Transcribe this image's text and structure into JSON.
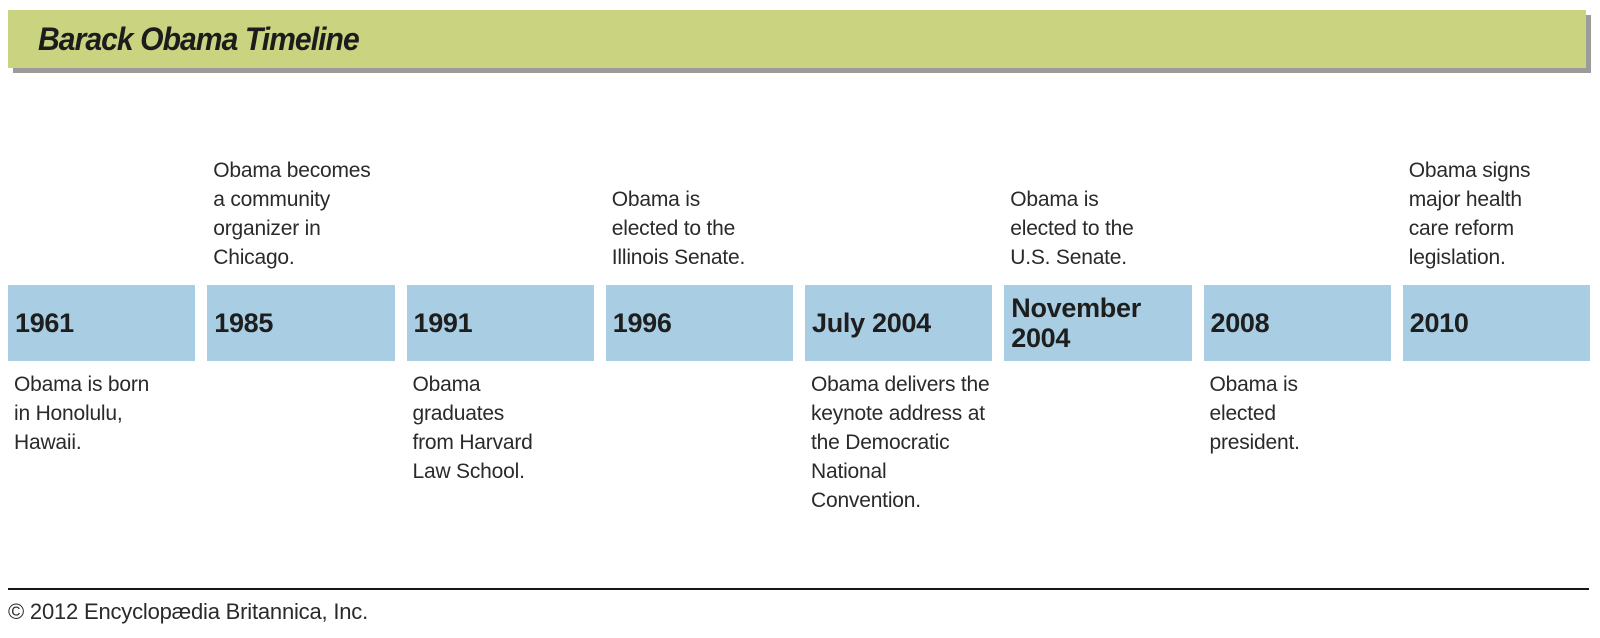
{
  "header": {
    "title": "Barack Obama Timeline"
  },
  "timeline": {
    "events": [
      {
        "date": "1961",
        "caption_below": "Obama is born\nin Honolulu,\nHawaii."
      },
      {
        "date": "1985",
        "caption_above": "Obama becomes\na community\norganizer in\nChicago."
      },
      {
        "date": "1991",
        "caption_below": "Obama\ngraduates\nfrom Harvard\nLaw School."
      },
      {
        "date": "1996",
        "caption_above": "Obama is\nelected to the\nIllinois Senate."
      },
      {
        "date": "July 2004",
        "caption_below": "Obama delivers the\nkeynote address at\nthe Democratic\nNational\nConvention."
      },
      {
        "date": "November\n2004",
        "caption_above": "Obama is\nelected to the\nU.S. Senate."
      },
      {
        "date": "2008",
        "caption_below": "Obama is\nelected\npresident."
      },
      {
        "date": "2010",
        "caption_above": "Obama signs\nmajor health\ncare reform\nlegislation."
      }
    ]
  },
  "footer": {
    "copyright": "© 2012 Encyclopædia Britannica, Inc."
  },
  "colors": {
    "header_bg": "#cad380",
    "header_shadow": "#9b9b9b",
    "block_bg": "#a9cee4",
    "text": "#231f20"
  }
}
